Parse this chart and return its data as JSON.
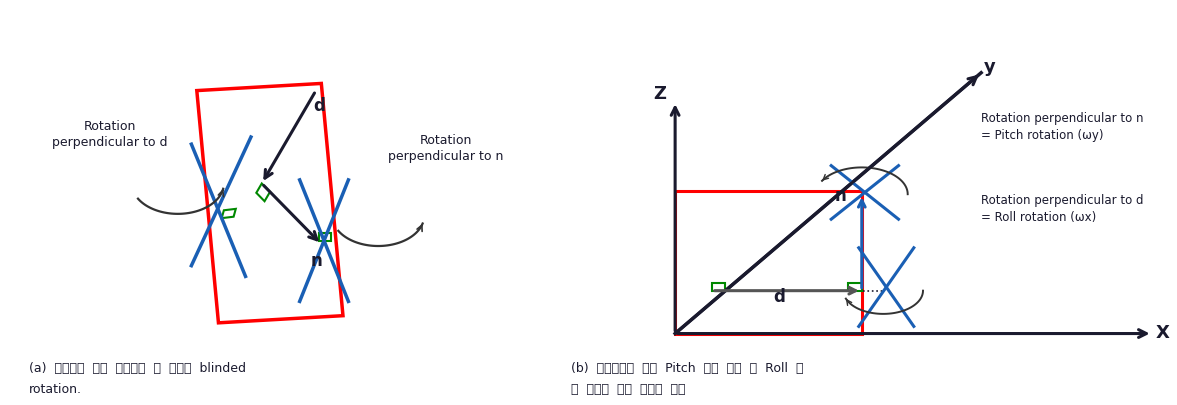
{
  "fig_width": 11.77,
  "fig_height": 4.06,
  "bg_color": "#ffffff",
  "caption_a": "(a)  특이점의  경우  발생하는  두  방향의  blinded",
  "caption_a2": "rotation.",
  "caption_b": "(b)  특이점으로  인해  Pitch  방향  회전  및  Roll  방",
  "caption_b2": "향  회전을  찾지  못하는  예시",
  "label_d": "d",
  "label_n": "n",
  "label_rot_perp_d_left": "Rotation\nperpendicular to d",
  "label_rot_perp_n_right": "Rotation\nperpendicular to n",
  "label_rot_perp_n_b": "Rotation perpendicular to n\n= Pitch rotation (ωy)",
  "label_rot_perp_d_b": "Rotation perpendicular to d\n= Roll rotation (ωx)",
  "label_x": "X",
  "label_y": "y",
  "label_z": "Z",
  "red_color": "#ff0000",
  "blue_color": "#1a5fb4",
  "dark_color": "#1a1a2e",
  "green_color": "#008800",
  "arrow_color": "#333333"
}
